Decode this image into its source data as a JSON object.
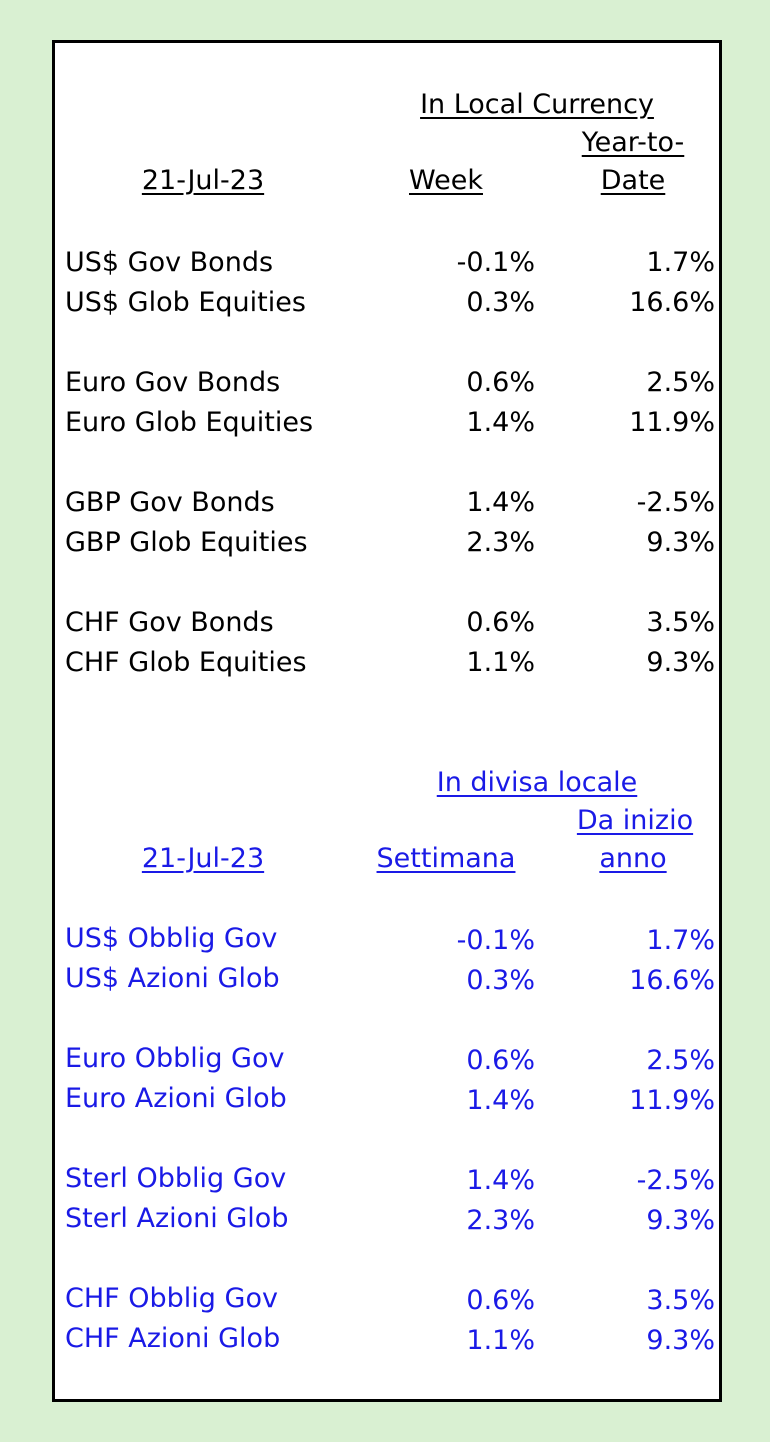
{
  "english": {
    "header_group": "In Local Currency",
    "date": "21-Jul-23",
    "col_week": "Week",
    "col_ytd_line1": "Year-to-",
    "col_ytd_line2": "Date",
    "rows": [
      {
        "label": "US$ Gov Bonds",
        "week": "-0.1%",
        "ytd": "1.7%"
      },
      {
        "label": "US$ Glob Equities",
        "week": "0.3%",
        "ytd": "16.6%"
      },
      {
        "label": "Euro Gov Bonds",
        "week": "0.6%",
        "ytd": "2.5%"
      },
      {
        "label": "Euro Glob Equities",
        "week": "1.4%",
        "ytd": "11.9%"
      },
      {
        "label": "GBP Gov Bonds",
        "week": "1.4%",
        "ytd": "-2.5%"
      },
      {
        "label": "GBP Glob Equities",
        "week": "2.3%",
        "ytd": "9.3%"
      },
      {
        "label": "CHF Gov Bonds",
        "week": "0.6%",
        "ytd": "3.5%"
      },
      {
        "label": "CHF Glob Equities",
        "week": "1.1%",
        "ytd": "9.3%"
      }
    ]
  },
  "italian": {
    "header_group": "In divisa locale",
    "date": "21-Jul-23",
    "col_week": "Settimana",
    "col_ytd_line1": "Da inizio ",
    "col_ytd_line2": "anno",
    "rows": [
      {
        "label": "US$ Obblig Gov",
        "week": "-0.1%",
        "ytd": "1.7%"
      },
      {
        "label": "US$ Azioni Glob",
        "week": "0.3%",
        "ytd": "16.6%"
      },
      {
        "label": "Euro Obblig Gov",
        "week": "0.6%",
        "ytd": "2.5%"
      },
      {
        "label": "Euro Azioni Glob",
        "week": "1.4%",
        "ytd": "11.9%"
      },
      {
        "label": "Sterl Obblig Gov",
        "week": "1.4%",
        "ytd": "-2.5%"
      },
      {
        "label": "Sterl Azioni Glob",
        "week": "2.3%",
        "ytd": "9.3%"
      },
      {
        "label": "CHF Obblig Gov",
        "week": "0.6%",
        "ytd": "3.5%"
      },
      {
        "label": "CHF Azioni Glob",
        "week": "1.1%",
        "ytd": "9.3%"
      }
    ]
  },
  "colors": {
    "background": "#d9f0d2",
    "english_text": "#000000",
    "italian_text": "#1a1ae6",
    "border": "#000000"
  }
}
